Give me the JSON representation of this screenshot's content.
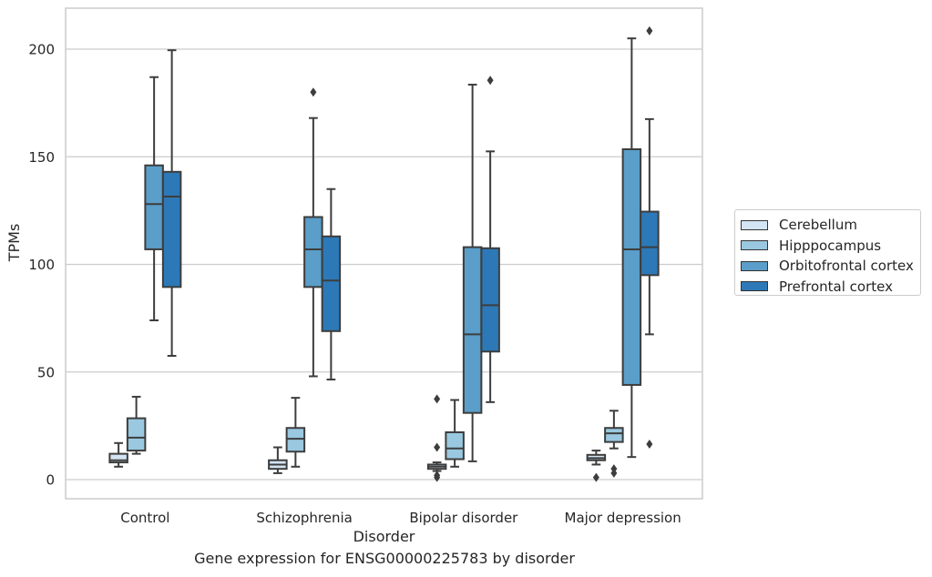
{
  "chart_data": {
    "type": "box",
    "caption": "Gene expression for ENSG00000225783 by disorder",
    "xlabel": "Disorder",
    "ylabel": "TPMs",
    "ylim": [
      -9,
      220
    ],
    "yticks": [
      0,
      50,
      100,
      150,
      200
    ],
    "grid": "horizontal",
    "legend_position": "right",
    "categories": [
      "Control",
      "Schizophrenia",
      "Bipolar disorder",
      "Major depression"
    ],
    "series": [
      {
        "name": "Cerebellum",
        "color": "#d3e4f3",
        "boxes": [
          {
            "whisker_low": 6,
            "q1": 8,
            "median": 9,
            "q3": 12,
            "whisker_high": 17,
            "outliers": []
          },
          {
            "whisker_low": 3,
            "q1": 5,
            "median": 7,
            "q3": 9,
            "whisker_high": 15,
            "outliers": []
          },
          {
            "whisker_low": 4,
            "q1": 5,
            "median": 6,
            "q3": 7,
            "whisker_high": 8,
            "outliers": [
              37.5,
              15,
              2,
              1
            ]
          },
          {
            "whisker_low": 7,
            "q1": 9,
            "median": 10,
            "q3": 11.5,
            "whisker_high": 13.5,
            "outliers": [
              1
            ]
          }
        ]
      },
      {
        "name": "Hipppocampus",
        "color": "#9ac8e0",
        "boxes": [
          {
            "whisker_low": 12,
            "q1": 13.5,
            "median": 19.5,
            "q3": 28.5,
            "whisker_high": 38.5,
            "outliers": []
          },
          {
            "whisker_low": 6,
            "q1": 13,
            "median": 19,
            "q3": 24,
            "whisker_high": 38,
            "outliers": []
          },
          {
            "whisker_low": 6,
            "q1": 9.5,
            "median": 14.5,
            "q3": 22,
            "whisker_high": 37,
            "outliers": []
          },
          {
            "whisker_low": 14.5,
            "q1": 17.5,
            "median": 21.5,
            "q3": 24,
            "whisker_high": 32,
            "outliers": [
              5,
              3
            ]
          }
        ]
      },
      {
        "name": "Orbitofrontal cortex",
        "color": "#5a9ec9",
        "boxes": [
          {
            "whisker_low": 74,
            "q1": 107,
            "median": 128,
            "q3": 146,
            "whisker_high": 187,
            "outliers": []
          },
          {
            "whisker_low": 48,
            "q1": 89.5,
            "median": 107,
            "q3": 122,
            "whisker_high": 168,
            "outliers": [
              180
            ]
          },
          {
            "whisker_low": 8.5,
            "q1": 31,
            "median": 67.5,
            "q3": 108,
            "whisker_high": 183.5,
            "outliers": []
          },
          {
            "whisker_low": 10.5,
            "q1": 44,
            "median": 107,
            "q3": 153.5,
            "whisker_high": 205,
            "outliers": []
          }
        ]
      },
      {
        "name": "Prefrontal cortex",
        "color": "#2d79b7",
        "boxes": [
          {
            "whisker_low": 57.5,
            "q1": 89.5,
            "median": 131.5,
            "q3": 143,
            "whisker_high": 199.5,
            "outliers": []
          },
          {
            "whisker_low": 46.5,
            "q1": 69,
            "median": 92.5,
            "q3": 113,
            "whisker_high": 135,
            "outliers": []
          },
          {
            "whisker_low": 36,
            "q1": 59.5,
            "median": 81,
            "q3": 107.5,
            "whisker_high": 152.5,
            "outliers": [
              185.5
            ]
          },
          {
            "whisker_low": 67.5,
            "q1": 95,
            "median": 108,
            "q3": 124.5,
            "whisker_high": 167.5,
            "outliers": [
              16.5,
              208.5
            ]
          }
        ]
      }
    ]
  }
}
